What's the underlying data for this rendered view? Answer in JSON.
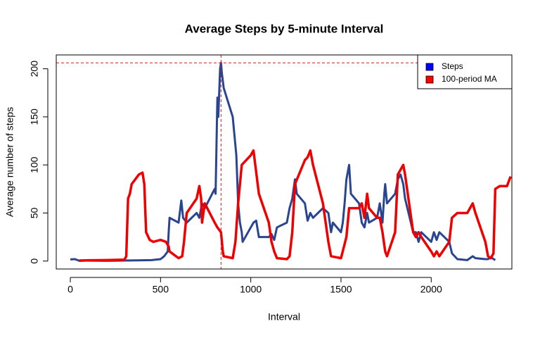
{
  "chart_data": {
    "type": "line",
    "title": "Average Steps by 5-minute Interval",
    "xlabel": "Interval",
    "ylabel": "Average number of steps",
    "xlim": [
      -78,
      2447
    ],
    "ylim": [
      -8.25,
      214.4
    ],
    "xticks": [
      0,
      500,
      1000,
      1500,
      2000
    ],
    "yticks": [
      0,
      50,
      100,
      150,
      200
    ],
    "legend": "topright",
    "hline": {
      "value": 206.17,
      "color": "#d01c1c"
    },
    "vline": {
      "value": 835,
      "color": "#d01c1c"
    },
    "series": [
      {
        "name": "Steps",
        "color": "#2a4590",
        "legend_color": "#0000ff",
        "x": [
          0,
          25,
          50,
          100,
          200,
          300,
          400,
          450,
          500,
          520,
          540,
          545,
          550,
          600,
          615,
          625,
          645,
          700,
          715,
          730,
          745,
          800,
          805,
          815,
          820,
          830,
          835,
          840,
          850,
          900,
          910,
          920,
          930,
          940,
          950,
          955,
          1000,
          1015,
          1030,
          1045,
          1100,
          1115,
          1130,
          1145,
          1200,
          1215,
          1230,
          1245,
          1255,
          1300,
          1315,
          1330,
          1345,
          1400,
          1430,
          1445,
          1455,
          1500,
          1510,
          1520,
          1530,
          1545,
          1555,
          1600,
          1615,
          1630,
          1645,
          1655,
          1700,
          1715,
          1730,
          1740,
          1745,
          1755,
          1800,
          1815,
          1830,
          1845,
          1855,
          1900,
          1915,
          1930,
          1945,
          2000,
          2015,
          2030,
          2045,
          2100,
          2115,
          2130,
          2145,
          2200,
          2230,
          2245,
          2300,
          2315,
          2330,
          2355
        ],
        "values": [
          1.7,
          2,
          0.3,
          0.5,
          0.3,
          0.5,
          0.8,
          1,
          2,
          5,
          10,
          30,
          45,
          40,
          63,
          45,
          40,
          50,
          45,
          60,
          55,
          75,
          70,
          170,
          150,
          200,
          206.17,
          195,
          180,
          150,
          130,
          110,
          60,
          40,
          30,
          20,
          35,
          40,
          42,
          25,
          25,
          28,
          22,
          35,
          40,
          55,
          65,
          85,
          70,
          60,
          42,
          50,
          45,
          55,
          50,
          30,
          40,
          30,
          40,
          60,
          85,
          100,
          70,
          60,
          40,
          35,
          50,
          40,
          45,
          60,
          40,
          70,
          80,
          60,
          70,
          85,
          90,
          80,
          65,
          30,
          30,
          20,
          30,
          20,
          30,
          22,
          30,
          20,
          8,
          5,
          2,
          1,
          5,
          3,
          2,
          2,
          4,
          1
        ]
      },
      {
        "name": "100-period MA",
        "color": "#ee0000",
        "legend_color": "#ff0000",
        "x": [
          50,
          100,
          200,
          300,
          310,
          320,
          330,
          340,
          360,
          380,
          400,
          410,
          420,
          440,
          460,
          500,
          530,
          545,
          550,
          600,
          620,
          630,
          645,
          700,
          715,
          725,
          730,
          745,
          800,
          815,
          835,
          845,
          850,
          900,
          915,
          930,
          950,
          1000,
          1015,
          1025,
          1045,
          1100,
          1115,
          1130,
          1145,
          1200,
          1215,
          1230,
          1245,
          1300,
          1315,
          1330,
          1345,
          1400,
          1415,
          1430,
          1445,
          1500,
          1530,
          1545,
          1600,
          1615,
          1630,
          1645,
          1655,
          1700,
          1715,
          1730,
          1745,
          1755,
          1800,
          1815,
          1830,
          1845,
          1855,
          1900,
          1915,
          1930,
          1945,
          2000,
          2015,
          2030,
          2045,
          2100,
          2115,
          2145,
          2200,
          2215,
          2230,
          2245,
          2300,
          2315,
          2330,
          2345,
          2355,
          2380,
          2420,
          2440
        ],
        "values": [
          0.5,
          0.8,
          1,
          1.5,
          5,
          65,
          70,
          80,
          85,
          90,
          92,
          80,
          30,
          22,
          20,
          22,
          20,
          15,
          10,
          3,
          5,
          20,
          50,
          65,
          78,
          65,
          40,
          60,
          40,
          35,
          30,
          10,
          5,
          3,
          20,
          60,
          100,
          110,
          115,
          100,
          70,
          40,
          20,
          10,
          3,
          2,
          5,
          30,
          80,
          105,
          108,
          115,
          100,
          60,
          40,
          20,
          5,
          3,
          25,
          55,
          55,
          60,
          45,
          70,
          55,
          45,
          45,
          30,
          10,
          5,
          30,
          90,
          95,
          100,
          90,
          30,
          25,
          30,
          25,
          10,
          5,
          10,
          5,
          20,
          45,
          50,
          50,
          55,
          60,
          50,
          20,
          5,
          3,
          8,
          75,
          78,
          78,
          88
        ]
      }
    ]
  }
}
